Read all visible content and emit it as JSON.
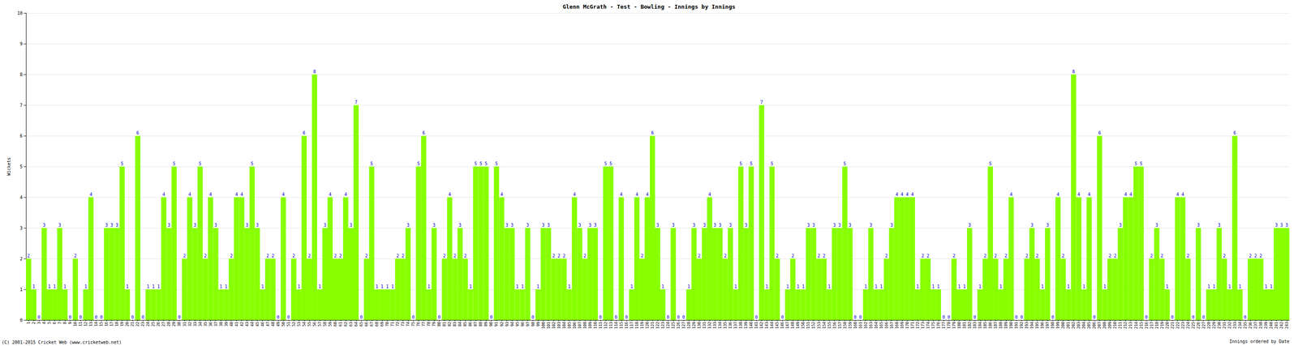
{
  "chart_data": {
    "type": "bar",
    "title": "Glenn McGrath - Test - Bowling - Innings by Innings",
    "ylabel": "Wickets",
    "xlabel": "Innings ordered by Date",
    "footer": "(C) 2001-2015 Cricket Web (www.cricketweb.net)",
    "categories": [
      "1",
      "2",
      "3",
      "4",
      "5",
      "6",
      "7",
      "8",
      "9",
      "10",
      "11",
      "12",
      "13",
      "14",
      "15",
      "16",
      "17",
      "18",
      "19",
      "20",
      "21",
      "22",
      "23",
      "24",
      "25",
      "26",
      "27",
      "28",
      "29",
      "30",
      "31",
      "32",
      "33",
      "34",
      "35",
      "36",
      "37",
      "38",
      "39",
      "40",
      "41",
      "42",
      "43",
      "44",
      "45",
      "46",
      "47",
      "48",
      "49",
      "50",
      "51",
      "52",
      "53",
      "54",
      "55",
      "56",
      "57",
      "58",
      "59",
      "60",
      "61",
      "62",
      "63",
      "64",
      "65",
      "66",
      "67",
      "68",
      "69",
      "70",
      "71",
      "72",
      "73",
      "74",
      "75",
      "76",
      "77",
      "78",
      "79",
      "80",
      "81",
      "82",
      "83",
      "84",
      "85",
      "86",
      "87",
      "88",
      "89",
      "90",
      "91",
      "92",
      "93",
      "94",
      "95",
      "96",
      "97",
      "98",
      "99",
      "100",
      "101",
      "102",
      "103",
      "104",
      "105",
      "106",
      "107",
      "108",
      "109",
      "110",
      "111",
      "112",
      "113",
      "114",
      "115",
      "116",
      "117",
      "118",
      "119",
      "120",
      "121",
      "122",
      "123",
      "124",
      "125",
      "126",
      "127",
      "128",
      "129",
      "130",
      "131",
      "132",
      "133",
      "134",
      "135",
      "136",
      "137",
      "138",
      "139",
      "140",
      "141",
      "142",
      "143",
      "144",
      "145",
      "146",
      "147",
      "148",
      "149",
      "150",
      "151",
      "152",
      "153",
      "154",
      "155",
      "156",
      "157",
      "158",
      "159",
      "160",
      "161",
      "162",
      "163",
      "164",
      "165",
      "166",
      "167",
      "168",
      "169",
      "170",
      "171",
      "172",
      "173",
      "174",
      "175",
      "176",
      "177",
      "178",
      "179",
      "180",
      "181",
      "182",
      "183",
      "184",
      "185",
      "186",
      "187",
      "188",
      "189",
      "190",
      "191",
      "192",
      "193",
      "194",
      "195",
      "196",
      "197",
      "198",
      "199",
      "200",
      "201",
      "202",
      "203",
      "204",
      "205",
      "206",
      "207",
      "208",
      "209",
      "210",
      "211",
      "212",
      "213",
      "214",
      "215",
      "216",
      "217",
      "218",
      "219",
      "220",
      "221",
      "222",
      "223",
      "224",
      "225",
      "226",
      "227",
      "228",
      "229",
      "230",
      "231",
      "232",
      "233",
      "234",
      "235",
      "236",
      "237",
      "238",
      "239",
      "240",
      "241",
      "242",
      "243"
    ],
    "values": [
      2,
      1,
      0,
      3,
      1,
      1,
      3,
      1,
      0,
      2,
      0,
      1,
      4,
      0,
      0,
      3,
      3,
      3,
      5,
      1,
      0,
      6,
      0,
      1,
      1,
      1,
      4,
      3,
      5,
      0,
      2,
      4,
      3,
      5,
      2,
      4,
      3,
      1,
      1,
      2,
      4,
      4,
      3,
      5,
      3,
      1,
      2,
      2,
      0,
      4,
      0,
      2,
      1,
      6,
      2,
      8,
      1,
      3,
      4,
      2,
      2,
      4,
      3,
      7,
      0,
      2,
      5,
      1,
      1,
      1,
      1,
      2,
      2,
      3,
      0,
      5,
      6,
      1,
      3,
      0,
      2,
      4,
      2,
      3,
      2,
      1,
      5,
      5,
      5,
      0,
      5,
      4,
      3,
      3,
      1,
      1,
      3,
      0,
      1,
      3,
      3,
      2,
      2,
      2,
      1,
      4,
      3,
      2,
      3,
      3,
      0,
      5,
      5,
      0,
      4,
      0,
      1,
      4,
      2,
      4,
      6,
      3,
      1,
      0,
      3,
      0,
      0,
      1,
      3,
      2,
      3,
      4,
      3,
      3,
      2,
      3,
      1,
      5,
      3,
      5,
      0,
      7,
      1,
      5,
      2,
      0,
      1,
      2,
      1,
      1,
      3,
      3,
      2,
      2,
      1,
      3,
      3,
      5,
      3,
      0,
      0,
      1,
      3,
      1,
      1,
      2,
      3,
      4,
      4,
      4,
      4,
      1,
      2,
      2,
      1,
      1,
      0,
      0,
      2,
      1,
      1,
      3,
      0,
      1,
      2,
      5,
      2,
      1,
      2,
      4,
      0,
      0,
      2,
      3,
      2,
      1,
      3,
      0,
      4,
      2,
      1,
      8,
      4,
      1,
      4,
      0,
      6,
      1,
      2,
      2,
      3,
      4,
      4,
      5,
      5,
      0,
      2,
      3,
      2,
      1,
      0,
      4,
      4,
      2,
      0,
      3,
      0,
      1,
      1,
      3,
      2,
      1,
      6,
      1,
      0,
      2,
      2,
      2,
      1,
      1,
      3,
      3,
      3
    ],
    "color": "#88ff00",
    "ylim": [
      0,
      10
    ],
    "yticks": [
      0,
      1,
      2,
      3,
      4,
      5,
      6,
      7,
      8,
      9,
      10
    ],
    "grid": true,
    "data_labels": true
  }
}
